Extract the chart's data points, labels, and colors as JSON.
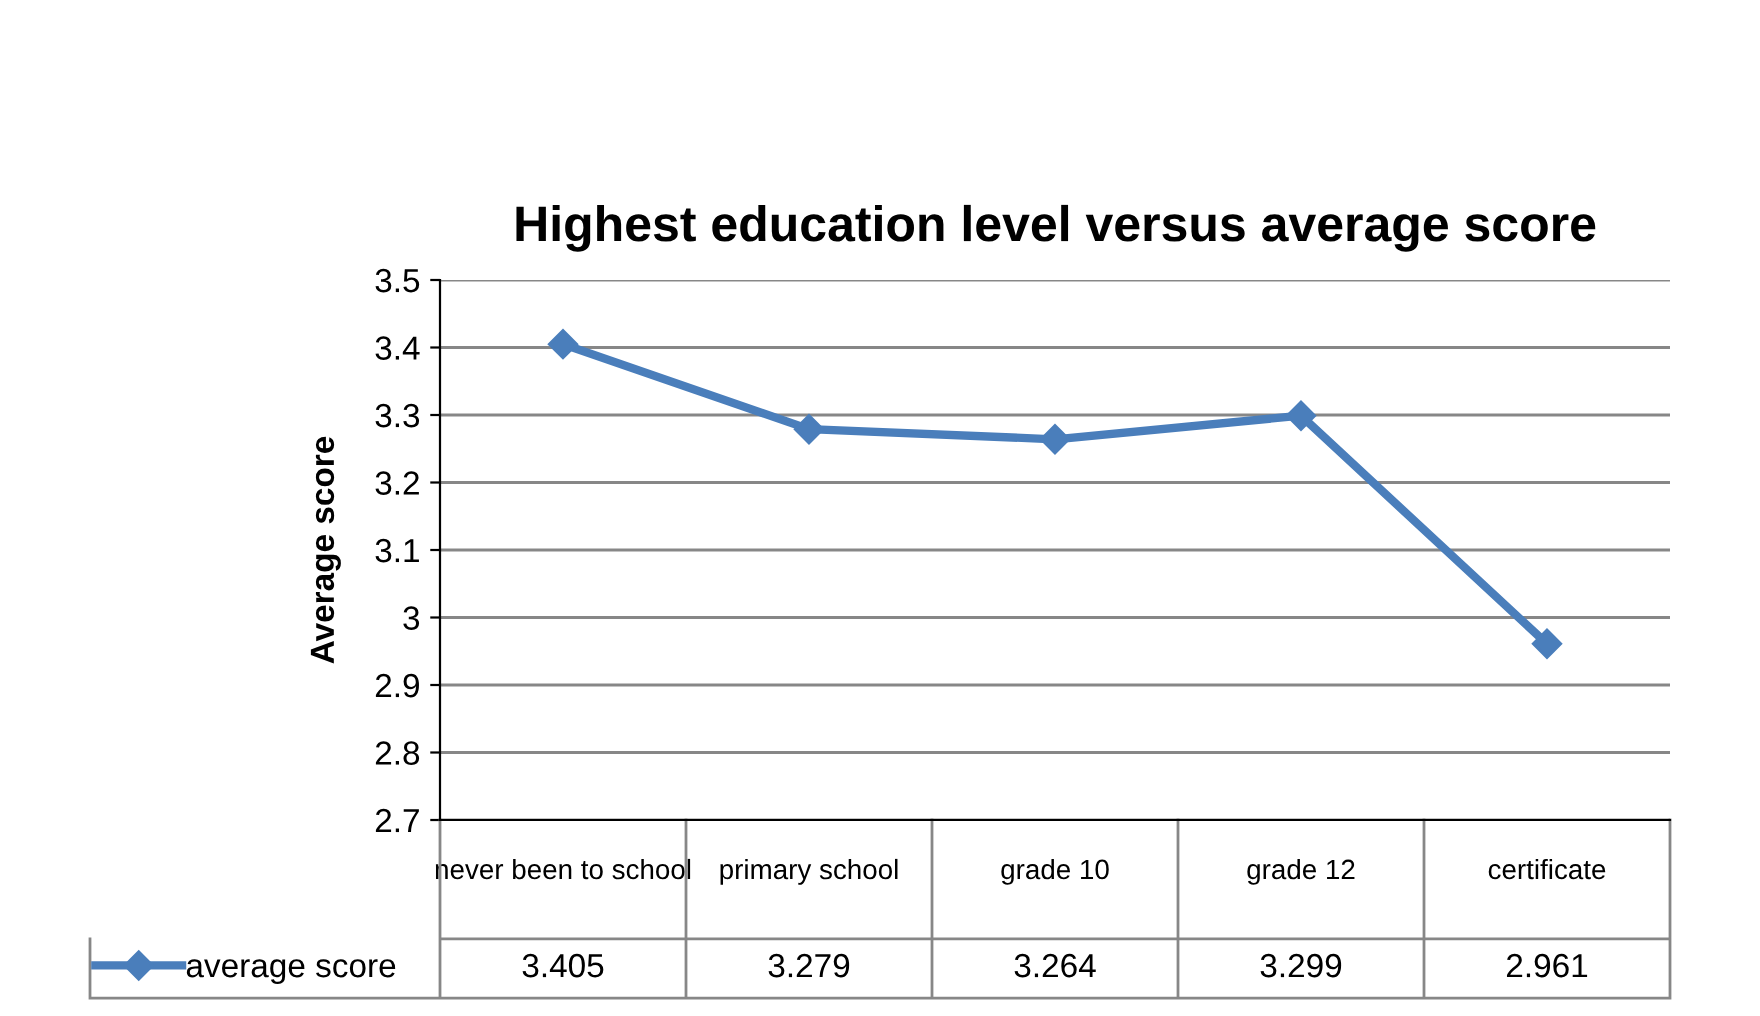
{
  "chart_data": {
    "type": "line",
    "title": "Highest education level versus average score",
    "ylabel": "Average score",
    "categories": [
      "never been to school",
      "primary school",
      "grade 10",
      "grade 12",
      "certificate"
    ],
    "series": [
      {
        "name": "average score",
        "color": "#4a7ebb",
        "values": [
          3.405,
          3.279,
          3.264,
          3.299,
          2.961
        ]
      }
    ],
    "ylim": [
      2.7,
      3.5
    ],
    "yticks": [
      2.7,
      2.8,
      2.9,
      3,
      3.1,
      3.2,
      3.3,
      3.4,
      3.5
    ],
    "grid": "y",
    "legend": "bottom",
    "marker": "diamond",
    "line_style": "solid",
    "data_labels": true
  }
}
